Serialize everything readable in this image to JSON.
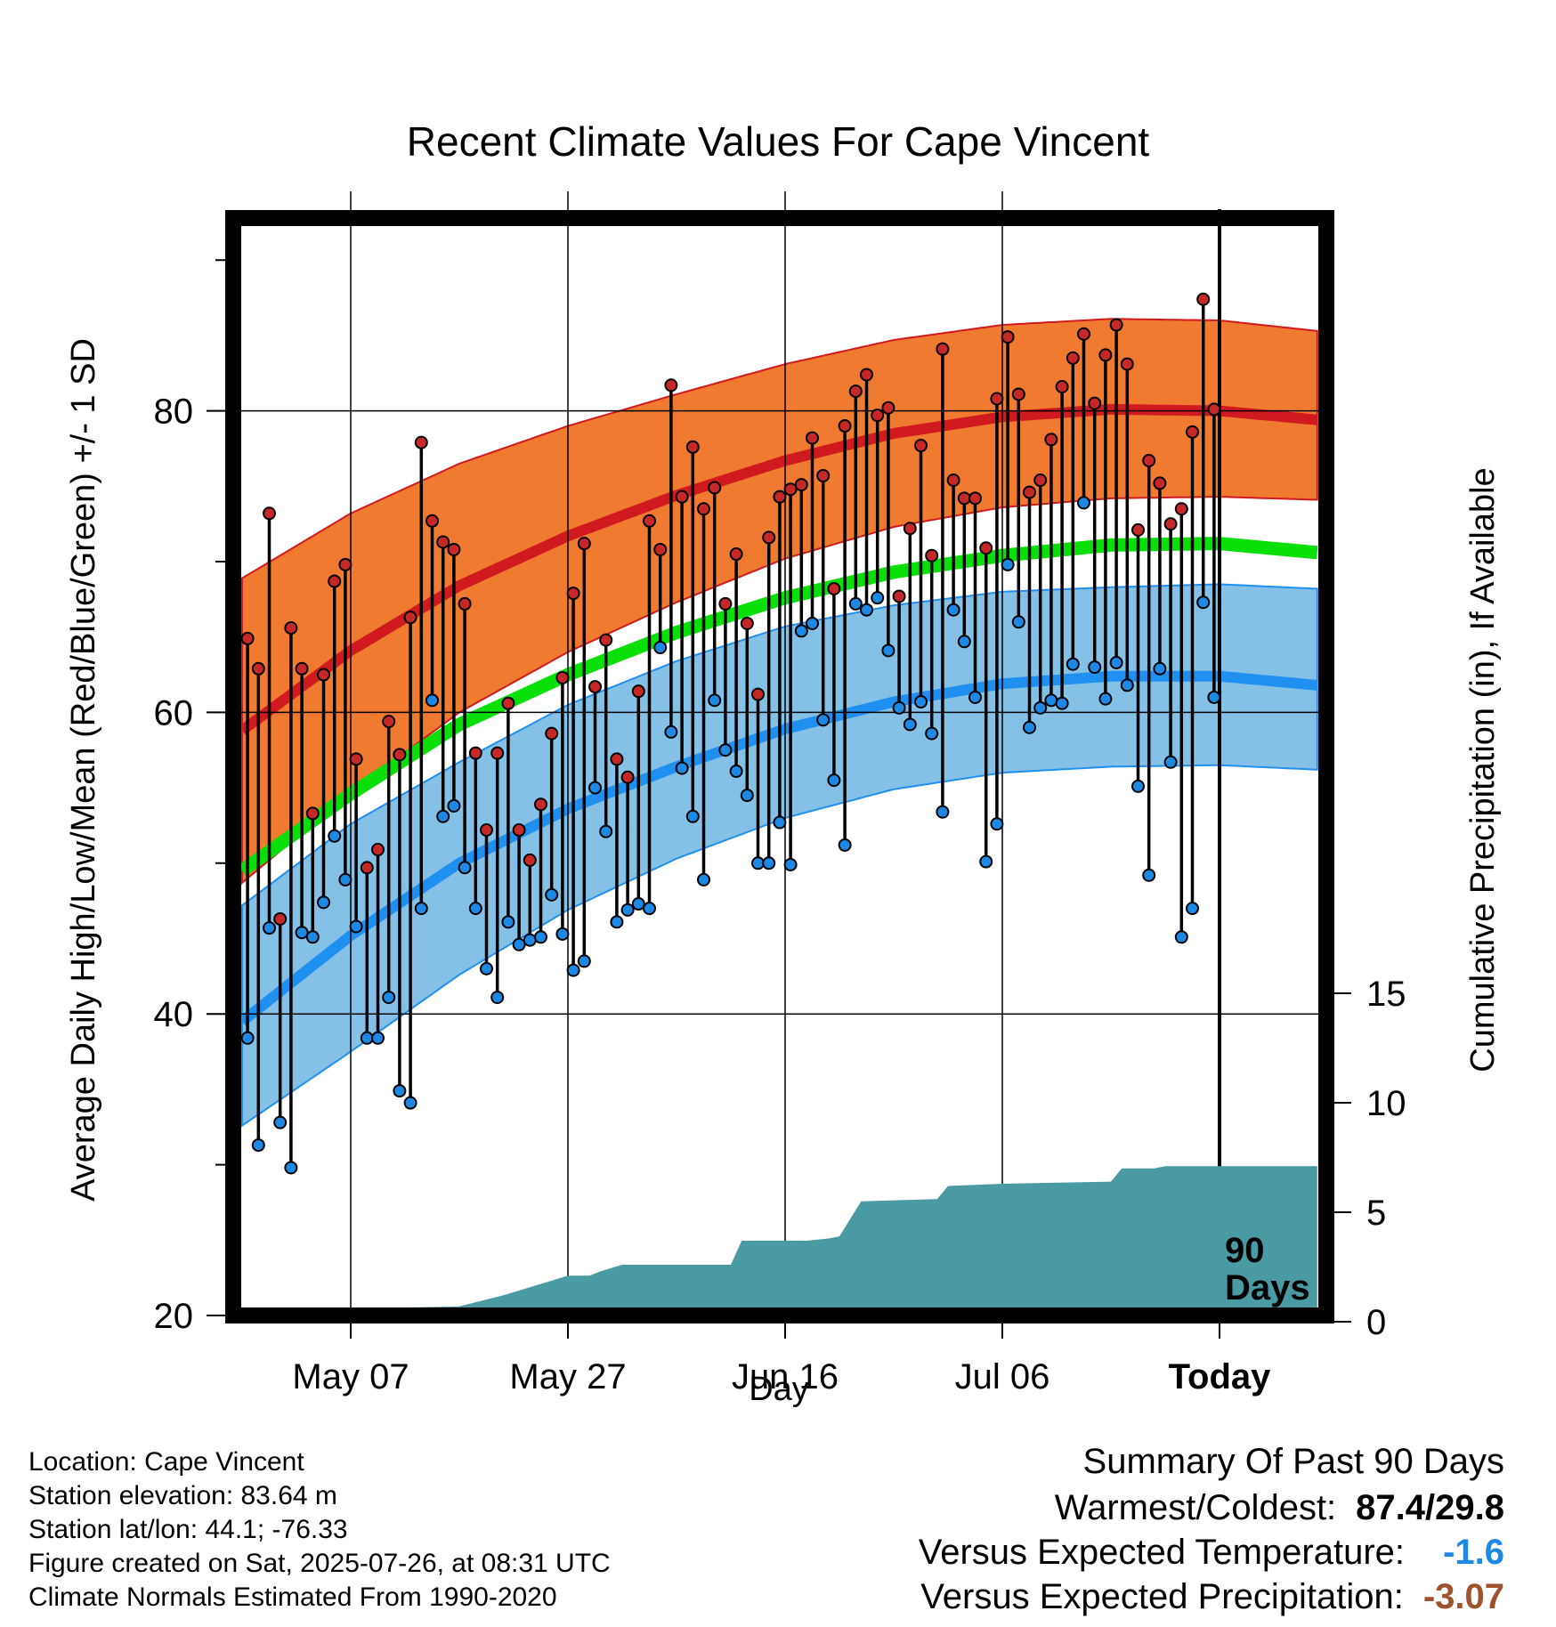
{
  "chart_data": {
    "type": "line",
    "title": "Recent Climate Values For Cape Vincent",
    "xlabel": "Day",
    "ylabel": "Average Daily High/Low/Mean (Red/Blue/Green) +/- 1 SD",
    "y2label": "Cumulative Precipitation (in), If Available",
    "ylim": [
      20,
      92
    ],
    "y2lim": [
      0,
      45
    ],
    "xlim": [
      -90,
      9
    ],
    "x_unit": "days relative to Today",
    "xticks": [
      {
        "x": -80,
        "label": "May 07"
      },
      {
        "x": -60,
        "label": "May 27"
      },
      {
        "x": -40,
        "label": "Jun 16"
      },
      {
        "x": -20,
        "label": "Jul 06"
      },
      {
        "x": 0,
        "label": "Today"
      }
    ],
    "yticks": [
      20,
      40,
      60,
      80
    ],
    "y2ticks": [
      0,
      5,
      10,
      15
    ],
    "grid": true,
    "marker_label": "90 Days",
    "colors": {
      "high_band": "#f07a30",
      "high_mean": "#d01a1f",
      "low_band": "#85c1e6",
      "low_mean": "#1f90f0",
      "mean_line": "#0adf0a",
      "precip": "#4a9aa4",
      "high_point": "#c62828",
      "low_point": "#1e88e5"
    },
    "normals": {
      "x": [
        -90,
        -80,
        -70,
        -60,
        -50,
        -40,
        -30,
        -20,
        -10,
        0,
        9
      ],
      "high_mean": [
        58.8,
        64.1,
        68.4,
        71.7,
        74.4,
        76.7,
        78.5,
        79.6,
        80.1,
        80.0,
        79.4
      ],
      "high_sd_upper": [
        68.9,
        73.2,
        76.5,
        79.0,
        81.1,
        83.1,
        84.7,
        85.7,
        86.1,
        86.0,
        85.3
      ],
      "high_sd_lower": [
        48.7,
        54.7,
        60.0,
        64.0,
        67.3,
        70.2,
        72.3,
        73.6,
        74.2,
        74.3,
        74.1
      ],
      "mean_line": [
        49.5,
        54.6,
        59.2,
        62.5,
        65.3,
        67.6,
        69.3,
        70.4,
        71.1,
        71.2,
        70.6
      ],
      "low_mean": [
        39.5,
        45.2,
        50.0,
        53.6,
        56.4,
        58.9,
        60.7,
        61.9,
        62.4,
        62.4,
        61.8
      ],
      "low_sd_upper": [
        47.2,
        52.6,
        56.7,
        60.5,
        63.4,
        65.7,
        67.1,
        68.0,
        68.3,
        68.5,
        68.2
      ],
      "low_sd_lower": [
        32.6,
        37.5,
        42.6,
        46.9,
        50.3,
        53.0,
        54.9,
        56.0,
        56.4,
        56.5,
        56.2
      ]
    },
    "daily": {
      "x": [
        -90,
        -89,
        -88,
        -87,
        -86,
        -85,
        -84,
        -83,
        -82,
        -81,
        -80,
        -79,
        -78,
        -77,
        -76,
        -75,
        -74,
        -73,
        -72,
        -71,
        -70,
        -69,
        -68,
        -67,
        -66,
        -65,
        -64,
        -63,
        -62,
        -61,
        -60,
        -59,
        -58,
        -57,
        -56,
        -55,
        -54,
        -53,
        -52,
        -51,
        -50,
        -49,
        -48,
        -47,
        -46,
        -45,
        -44,
        -43,
        -42,
        -41,
        -40,
        -39,
        -38,
        -37,
        -36,
        -35,
        -34,
        -33,
        -32,
        -31,
        -30,
        -29,
        -28,
        -27,
        -26,
        -25,
        -24,
        -23,
        -22,
        -21,
        -20,
        -19,
        -18,
        -17,
        -16,
        -15,
        -14,
        -13,
        -12,
        -11,
        -10,
        -9,
        -8,
        -7,
        -6,
        -5,
        -4,
        -3,
        -2,
        -1
      ],
      "high": [
        64.9,
        62.9,
        73.2,
        46.3,
        65.6,
        62.9,
        53.3,
        62.5,
        68.7,
        69.8,
        56.9,
        49.7,
        50.9,
        59.4,
        57.2,
        66.3,
        77.9,
        72.7,
        71.3,
        70.8,
        67.2,
        57.3,
        52.2,
        57.3,
        60.6,
        52.2,
        50.2,
        53.9,
        58.6,
        62.3,
        67.9,
        71.2,
        61.7,
        64.8,
        56.9,
        55.7,
        61.4,
        72.7,
        70.8,
        81.7,
        74.3,
        77.6,
        73.5,
        74.9,
        67.2,
        70.5,
        65.9,
        61.2,
        71.6,
        74.3,
        74.8,
        75.1,
        78.2,
        75.7,
        68.2,
        79.0,
        81.3,
        82.4,
        79.7,
        80.2,
        67.7,
        72.2,
        77.7,
        70.4,
        84.1,
        75.4,
        74.2,
        74.2,
        70.9,
        80.8,
        84.9,
        81.1,
        74.6,
        75.4,
        78.1,
        81.6,
        83.5,
        85.1,
        80.5,
        83.7,
        85.7,
        83.1,
        72.1,
        76.7,
        75.2,
        72.5,
        73.5,
        78.6,
        87.4,
        80.1
      ],
      "low": [
        38.4,
        31.3,
        45.7,
        32.8,
        29.8,
        45.4,
        45.1,
        47.4,
        51.8,
        48.9,
        45.8,
        38.4,
        38.4,
        41.1,
        34.9,
        34.1,
        47.0,
        60.8,
        53.1,
        53.8,
        49.7,
        47.0,
        43.0,
        41.1,
        46.1,
        44.6,
        44.9,
        45.1,
        47.9,
        45.3,
        42.9,
        43.5,
        55.0,
        52.1,
        46.1,
        46.9,
        47.3,
        47.0,
        64.3,
        58.7,
        56.3,
        53.1,
        48.9,
        60.8,
        57.5,
        56.1,
        54.5,
        50.0,
        50.0,
        52.7,
        49.9,
        65.4,
        65.9,
        59.5,
        55.5,
        51.2,
        67.2,
        66.8,
        67.6,
        64.1,
        60.3,
        59.2,
        60.7,
        58.6,
        53.4,
        66.8,
        64.7,
        61.0,
        50.1,
        52.6,
        69.8,
        66.0,
        59.0,
        60.3,
        60.8,
        60.6,
        63.2,
        73.9,
        63.0,
        60.9,
        63.3,
        61.8,
        55.1,
        49.2,
        62.9,
        56.7,
        45.1,
        47.0,
        67.3,
        61.0
      ]
    },
    "precip": {
      "x": [
        -90,
        -83,
        -80,
        -70,
        -66,
        -64,
        -60,
        -58,
        -57,
        -55,
        -45,
        -44,
        -38,
        -36,
        -35,
        -33,
        -26,
        -25,
        -20,
        -10,
        -9,
        -6,
        -5,
        9
      ],
      "cum": [
        0,
        0.1,
        0.6,
        0.7,
        1.2,
        1.5,
        2.1,
        2.1,
        2.3,
        2.6,
        2.6,
        3.7,
        3.7,
        3.8,
        3.9,
        5.5,
        5.6,
        6.2,
        6.3,
        6.4,
        7.0,
        7.0,
        7.1,
        7.1
      ]
    }
  },
  "info": {
    "location": "Location: Cape Vincent",
    "elevation": "Station elevation: 83.64 m",
    "latlon": "Station lat/lon: 44.1; -76.33",
    "created": "Figure created on Sat, 2025-07-26, at 08:31 UTC",
    "normals": "Climate Normals Estimated From 1990-2020"
  },
  "summary": {
    "title": "Summary Of Past 90 Days",
    "warm_cold_label": "Warmest/Coldest:",
    "warm_cold_value": "87.4/29.8",
    "temp_label": "Versus Expected Temperature:",
    "temp_value": "-1.6",
    "temp_color": "#1e88e5",
    "precip_label": "Versus Expected Precipitation:",
    "precip_value": "-3.07",
    "precip_color": "#a0522d"
  }
}
